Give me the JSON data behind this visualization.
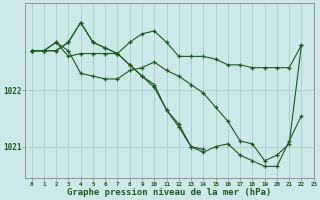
{
  "bg_color": "#cce8e8",
  "grid_color": "#aacccc",
  "line_color": "#1a5c1a",
  "marker_color": "#1a5c1a",
  "xlabel": "Graphe pression niveau de la mer (hPa)",
  "xlabel_fontsize": 6.5,
  "yticks": [
    1021,
    1022
  ],
  "xlim": [
    -0.5,
    23
  ],
  "ylim": [
    1020.45,
    1023.55
  ],
  "hours": [
    0,
    1,
    2,
    3,
    4,
    5,
    6,
    7,
    8,
    9,
    10,
    11,
    12,
    13,
    14,
    15,
    16,
    17,
    18,
    19,
    20,
    21,
    22,
    23
  ],
  "series": [
    [
      1022.7,
      1022.7,
      1022.85,
      1022.6,
      1022.65,
      1022.65,
      1022.65,
      1022.65,
      1022.85,
      1023.0,
      1023.05,
      1022.85,
      1022.6,
      1022.6,
      1022.6,
      1022.55,
      1022.45,
      1022.45,
      1022.4,
      1022.4,
      1022.4,
      1022.4,
      1022.8,
      null
    ],
    [
      1022.7,
      1022.7,
      1022.85,
      1022.7,
      1022.3,
      1022.25,
      1022.2,
      1022.2,
      1022.35,
      1022.4,
      1022.5,
      1022.35,
      1022.25,
      1022.1,
      1021.95,
      1021.7,
      1021.45,
      1021.1,
      1021.05,
      1020.75,
      1020.85,
      1021.05,
      1022.8,
      null
    ],
    [
      1022.7,
      1022.7,
      1022.7,
      1022.85,
      1023.2,
      1022.85,
      1022.75,
      1022.65,
      1022.45,
      1022.25,
      1022.1,
      1021.65,
      1021.4,
      1021.0,
      1020.95,
      null,
      null,
      null,
      null,
      null,
      null,
      null,
      null,
      null
    ],
    [
      1022.7,
      1022.7,
      1022.7,
      1022.85,
      1023.2,
      1022.85,
      1022.75,
      1022.65,
      1022.45,
      1022.25,
      1022.05,
      1021.65,
      1021.35,
      1021.0,
      1020.9,
      1021.0,
      1021.05,
      1020.85,
      1020.75,
      1020.65,
      1020.65,
      1021.1,
      1021.55,
      null
    ]
  ]
}
